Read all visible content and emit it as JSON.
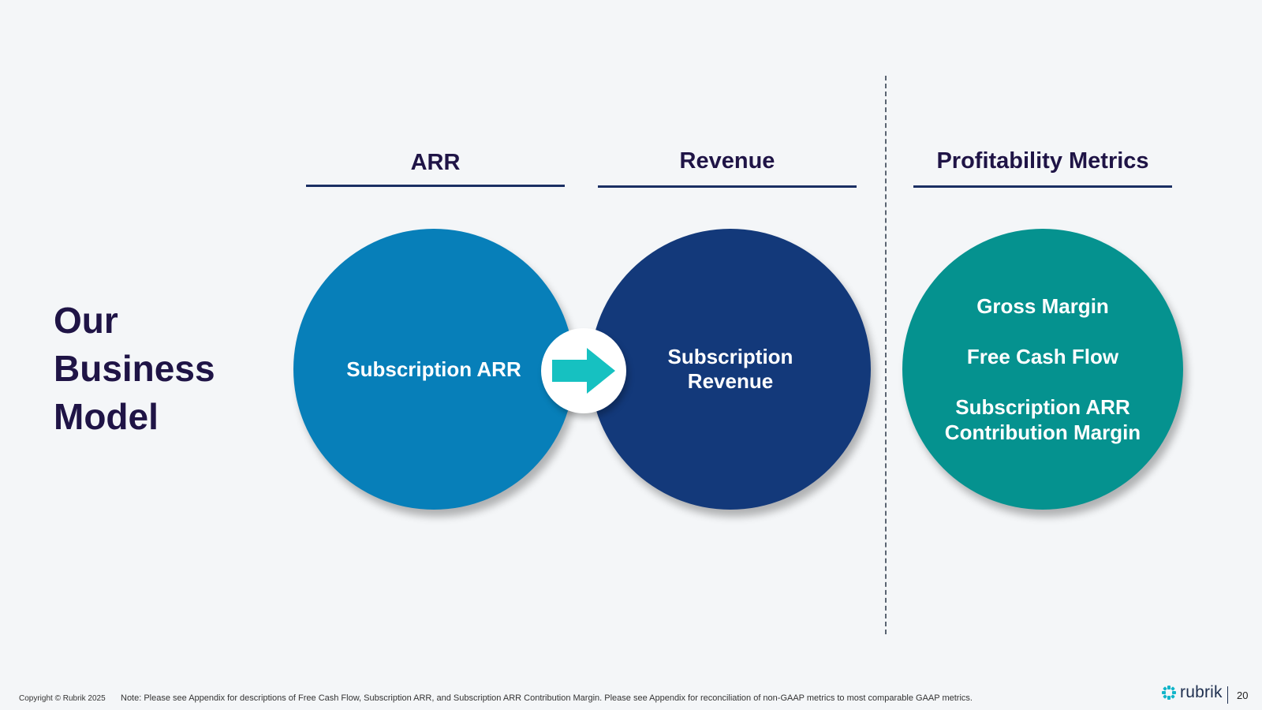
{
  "slide": {
    "title": "Our Business Model"
  },
  "columns": [
    {
      "header": "ARR",
      "circle_text": "Subscription ARR",
      "color": "#077fb9"
    },
    {
      "header": "Revenue",
      "circle_text": "Subscription Revenue",
      "color": "#13397a"
    },
    {
      "header": "Profitability Metrics",
      "items": [
        "Gross Margin",
        "Free Cash Flow",
        "Subscription ARR Contribution Margin"
      ],
      "color": "#05928f"
    }
  ],
  "connector": {
    "icon": "arrow-right-icon",
    "color": "#16c1c1"
  },
  "footer": {
    "copyright": "Copyright © Rubrik 2025",
    "note": "Note: Please see Appendix for descriptions of Free Cash Flow, Subscription ARR, and Subscription ARR Contribution Margin.  Please see Appendix for reconciliation of non-GAAP metrics to most comparable GAAP metrics.",
    "brand": "rubrik",
    "page_number": "20"
  }
}
